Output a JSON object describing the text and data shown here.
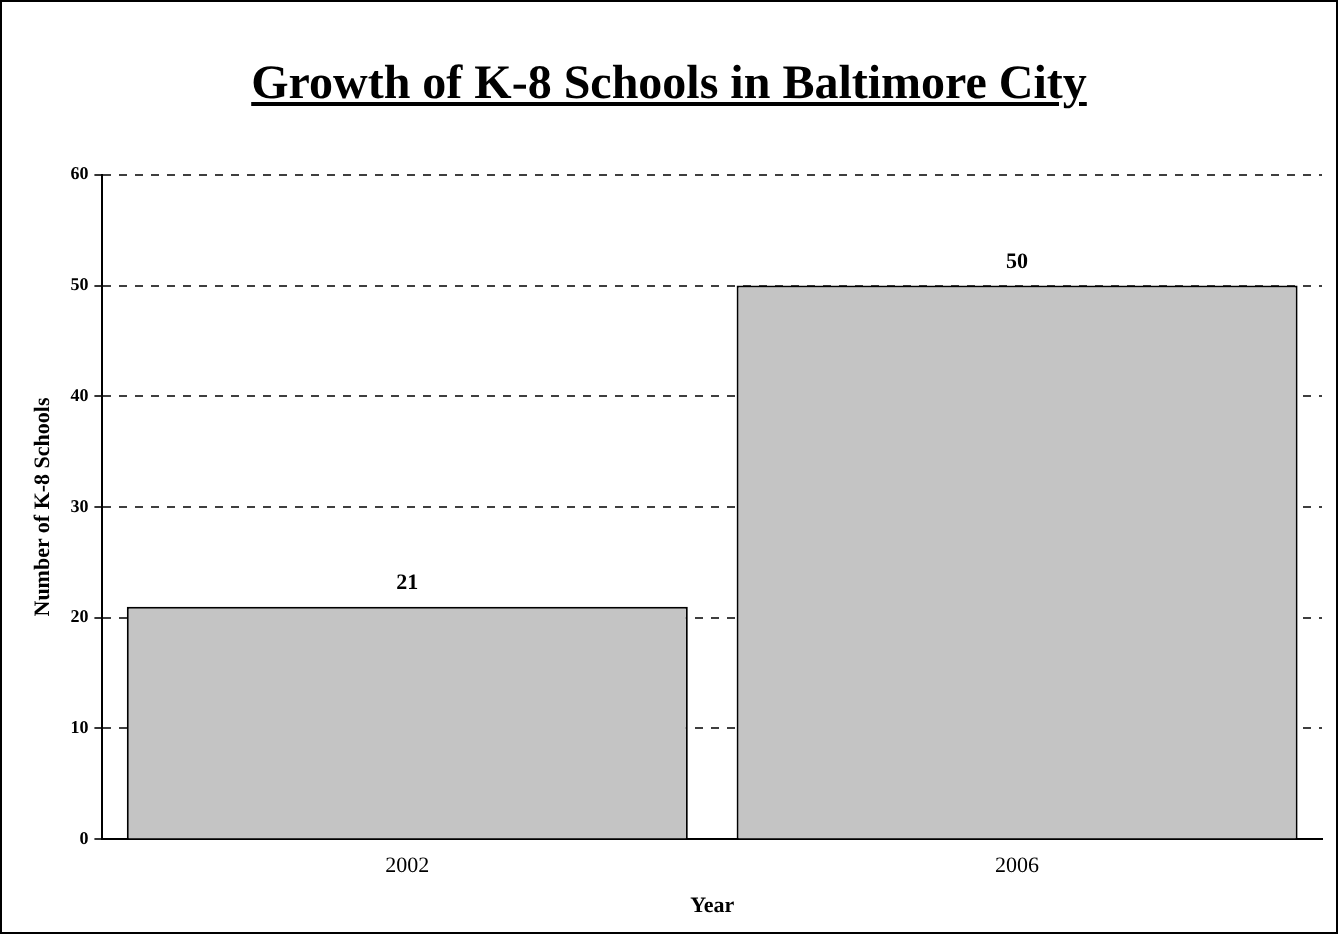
{
  "chart_data": {
    "type": "bar",
    "title": "Growth of K-8 Schools in Baltimore City",
    "xlabel": "Year",
    "ylabel": "Number of K-8 Schools",
    "categories": [
      "2002",
      "2006"
    ],
    "values": [
      21,
      50
    ],
    "color": "#c4c4c4",
    "ylim": [
      0,
      60
    ],
    "yticks": [
      0,
      10,
      20,
      30,
      40,
      50,
      60
    ],
    "grid": "y",
    "data_labels": true
  }
}
